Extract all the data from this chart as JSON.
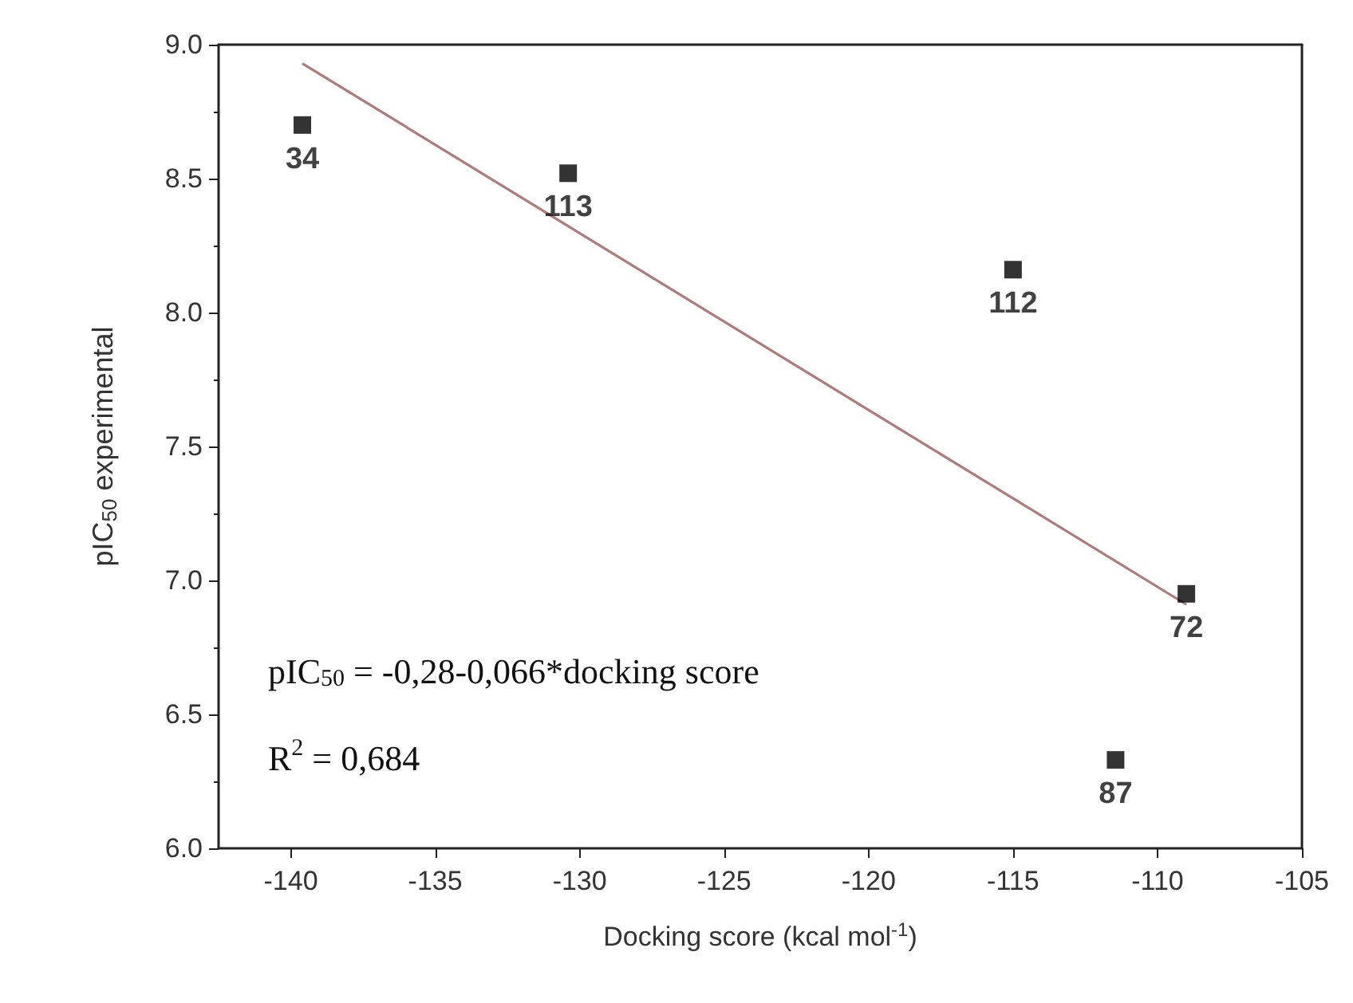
{
  "chart_data": {
    "type": "scatter",
    "xlabel": "Docking score (kcal mol$^{-1}$)",
    "ylabel": "pIC$_{50}$ experimental",
    "x": [
      -139.6,
      -130.4,
      -115.0,
      -109.0,
      -111.45
    ],
    "series": [
      {
        "color": "#000000",
        "marker": "square",
        "values": [
          8.7,
          8.52,
          8.16,
          6.95,
          6.33
        ]
      },
      {
        "type": "line",
        "color": "#b07a7a",
        "x": [
          -139.6,
          -109.0
        ],
        "values": [
          8.93,
          6.91
        ]
      }
    ],
    "grid": false,
    "xlim": [
      -142.5,
      -105
    ],
    "xticks": [
      -140,
      -135,
      -130,
      -125,
      -120,
      -115,
      -110,
      -105
    ],
    "ylim": [
      6.0,
      9.0
    ],
    "yticks": [
      {
        "value": 6.0,
        "label": "6.0"
      },
      {
        "value": 6.5,
        "label": "6.5"
      },
      {
        "value": 7.0,
        "label": "7.0"
      },
      {
        "value": 7.5,
        "label": "7.5"
      },
      {
        "value": 8.0,
        "label": "8.0"
      },
      {
        "value": 8.5,
        "label": "8.5"
      },
      {
        "value": 9.0,
        "label": "9.0"
      }
    ],
    "annotations": [
      {
        "text": "34",
        "x": -139.6,
        "y": 8.7
      },
      {
        "text": "113",
        "x": -130.4,
        "y": 8.52
      },
      {
        "text": "112",
        "x": -115.0,
        "y": 8.16
      },
      {
        "text": "72",
        "x": -109.0,
        "y": 6.95
      },
      {
        "text": "87",
        "x": -111.45,
        "y": 6.33
      },
      "pIC$_{50}$ = -0,28-0,066*docking score",
      "R$^{2}$ = 0,684"
    ]
  }
}
